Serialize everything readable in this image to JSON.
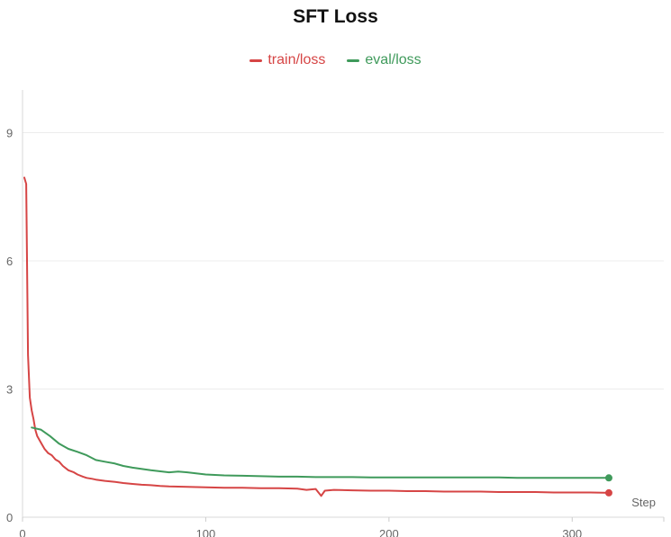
{
  "chart_data": {
    "type": "line",
    "title": "SFT Loss",
    "xlabel": "Step",
    "ylabel": "",
    "xlim": [
      0,
      350
    ],
    "ylim": [
      0,
      10
    ],
    "x_ticks": [
      0,
      100,
      200,
      300
    ],
    "x_tick_labels": [
      "0",
      "100",
      "200",
      "300"
    ],
    "y_ticks": [
      0,
      3,
      6,
      9
    ],
    "y_tick_labels": [
      "0",
      "3",
      "6",
      "9"
    ],
    "grid": "horizontal",
    "legend_position": "top-center",
    "series": [
      {
        "name": "train/loss",
        "color": "#d64545",
        "end_marker": true,
        "x": [
          1,
          2,
          3,
          4,
          5,
          6,
          7,
          8,
          10,
          12,
          14,
          16,
          18,
          20,
          22,
          25,
          28,
          30,
          33,
          35,
          38,
          40,
          45,
          50,
          55,
          60,
          65,
          70,
          75,
          80,
          90,
          100,
          110,
          120,
          130,
          140,
          150,
          155,
          160,
          163,
          165,
          170,
          180,
          190,
          200,
          210,
          220,
          230,
          240,
          250,
          260,
          270,
          280,
          290,
          300,
          310,
          320
        ],
        "y": [
          7.95,
          7.8,
          3.8,
          2.8,
          2.5,
          2.3,
          2.05,
          1.9,
          1.75,
          1.6,
          1.5,
          1.45,
          1.35,
          1.3,
          1.2,
          1.1,
          1.05,
          1.0,
          0.95,
          0.92,
          0.9,
          0.88,
          0.85,
          0.83,
          0.8,
          0.78,
          0.76,
          0.75,
          0.73,
          0.72,
          0.71,
          0.7,
          0.69,
          0.69,
          0.68,
          0.68,
          0.67,
          0.64,
          0.66,
          0.5,
          0.62,
          0.64,
          0.63,
          0.62,
          0.62,
          0.61,
          0.61,
          0.6,
          0.6,
          0.6,
          0.59,
          0.59,
          0.59,
          0.58,
          0.58,
          0.58,
          0.57
        ]
      },
      {
        "name": "eval/loss",
        "color": "#3f9a5b",
        "end_marker": true,
        "x": [
          5,
          10,
          15,
          20,
          25,
          30,
          35,
          40,
          45,
          50,
          55,
          60,
          70,
          80,
          85,
          90,
          100,
          110,
          120,
          130,
          140,
          150,
          160,
          170,
          180,
          190,
          200,
          210,
          220,
          230,
          240,
          250,
          260,
          270,
          280,
          290,
          300,
          310,
          320
        ],
        "y": [
          2.1,
          2.05,
          1.9,
          1.72,
          1.6,
          1.53,
          1.45,
          1.34,
          1.3,
          1.26,
          1.2,
          1.16,
          1.1,
          1.05,
          1.07,
          1.05,
          1.0,
          0.98,
          0.97,
          0.96,
          0.95,
          0.95,
          0.94,
          0.94,
          0.94,
          0.93,
          0.93,
          0.93,
          0.93,
          0.93,
          0.93,
          0.93,
          0.93,
          0.92,
          0.92,
          0.92,
          0.92,
          0.92,
          0.92
        ]
      }
    ]
  }
}
